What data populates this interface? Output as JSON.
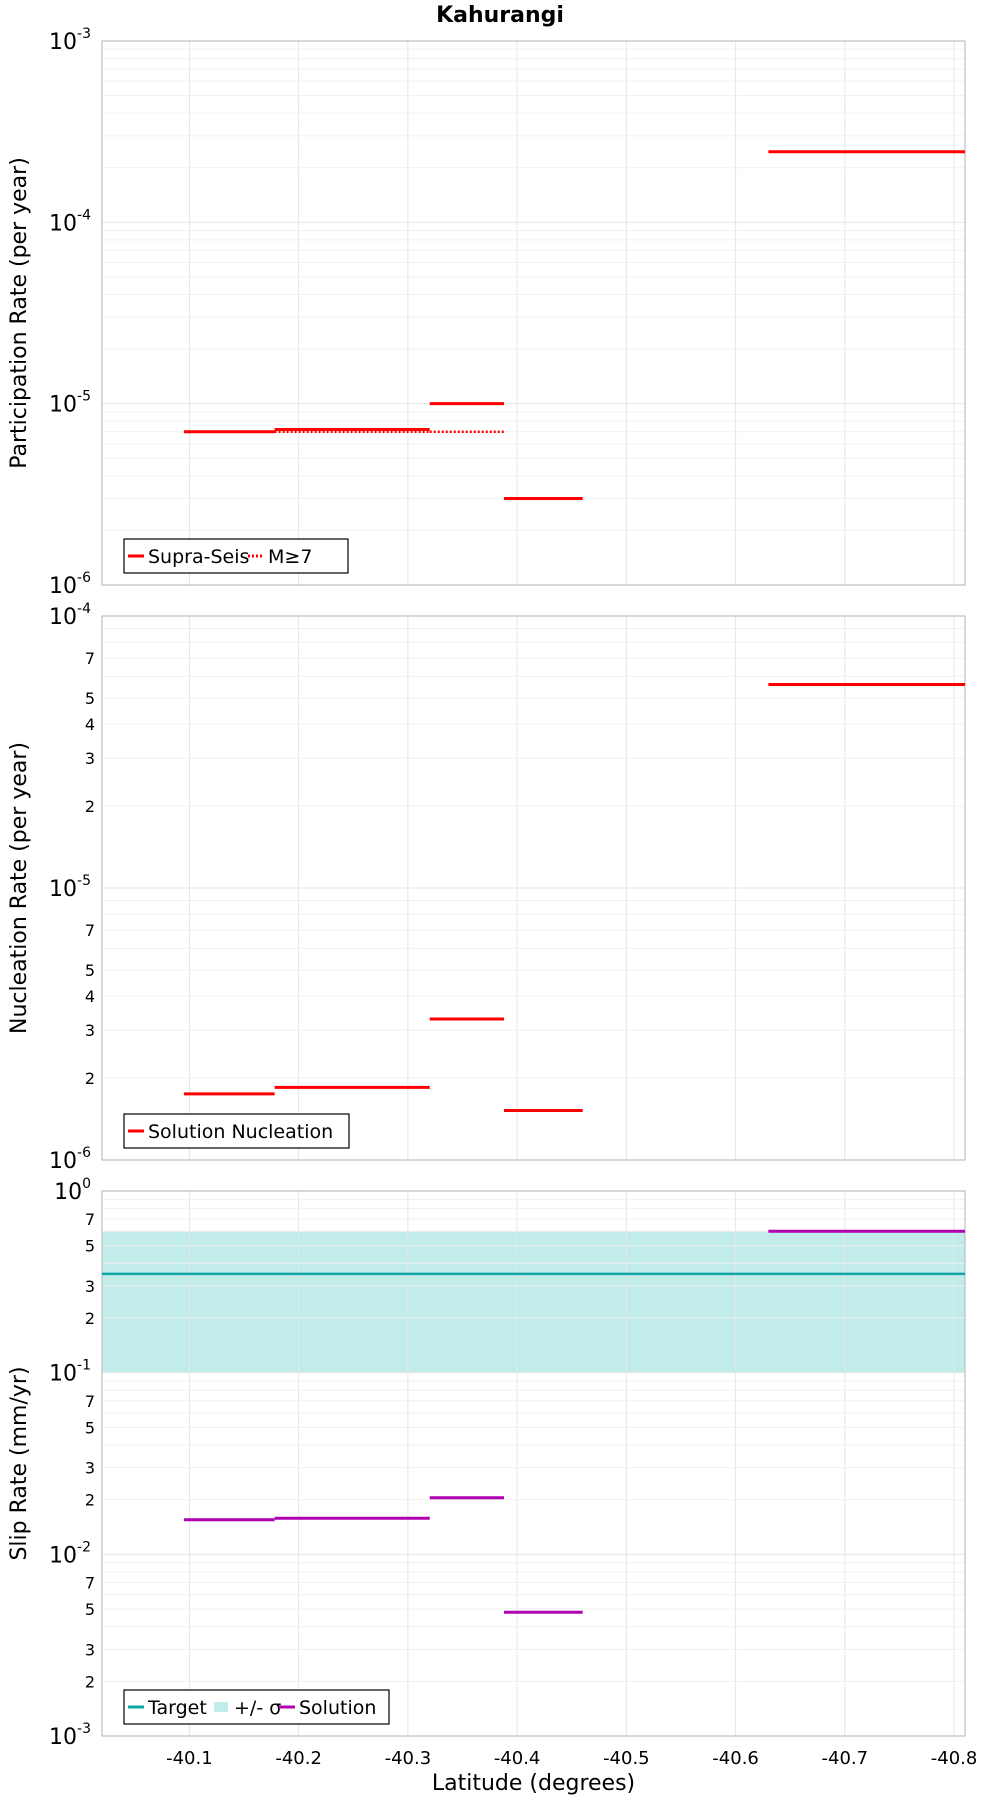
{
  "title": "Kahurangi",
  "colors": {
    "red": "#ff0000",
    "magenta": "#b000b0",
    "teal": "#12a8a8",
    "band": "#c2ecea",
    "grid": "#e6e6e6",
    "frame": "#bdbdbd"
  },
  "chart_data": [
    {
      "type": "line",
      "title": "Kahurangi",
      "ylabel": "Participation Rate (per year)",
      "xlabel": "",
      "xlim": [
        -40.02,
        -40.81
      ],
      "x_ticks": [
        "-40.1",
        "-40.2",
        "-40.3",
        "-40.4",
        "-40.5",
        "-40.6",
        "-40.7",
        "-40.8"
      ],
      "yscale": "log",
      "ylim": [
        1e-06,
        0.001
      ],
      "y_ticks": [
        {
          "base": "10",
          "exp": "-6"
        },
        {
          "base": "10",
          "exp": "-5"
        },
        {
          "base": "10",
          "exp": "-4"
        },
        {
          "base": "10",
          "exp": "-3"
        }
      ],
      "y_minor_labels": [],
      "grid": true,
      "legend_position": "bottom-left",
      "series": [
        {
          "name": "Supra-Seis",
          "style": "solid",
          "color": "#ff0000",
          "segments": [
            {
              "x": [
                -40.095,
                -40.178
              ],
              "y": 7e-06
            },
            {
              "x": [
                -40.178,
                -40.32
              ],
              "y": 7.2e-06
            },
            {
              "x": [
                -40.32,
                -40.388
              ],
              "y": 1e-05
            },
            {
              "x": [
                -40.388,
                -40.46
              ],
              "y": 3e-06
            },
            {
              "x": [
                -40.63,
                -40.81
              ],
              "y": 0.000245
            }
          ]
        },
        {
          "name": "M≥7",
          "style": "dotted",
          "color": "#ff0000",
          "segments": [
            {
              "x": [
                -40.095,
                -40.178
              ],
              "y": 7e-06
            },
            {
              "x": [
                -40.178,
                -40.32
              ],
              "y": 7e-06
            },
            {
              "x": [
                -40.32,
                -40.388
              ],
              "y": 7e-06
            }
          ]
        }
      ]
    },
    {
      "type": "line",
      "ylabel": "Nucleation Rate (per year)",
      "xlabel": "",
      "xlim": [
        -40.02,
        -40.81
      ],
      "x_ticks": [
        "-40.1",
        "-40.2",
        "-40.3",
        "-40.4",
        "-40.5",
        "-40.6",
        "-40.7",
        "-40.8"
      ],
      "yscale": "log",
      "ylim": [
        1e-06,
        0.0001
      ],
      "y_ticks": [
        {
          "base": "10",
          "exp": "-6"
        },
        {
          "base": "10",
          "exp": "-5"
        },
        {
          "base": "10",
          "exp": "-4"
        }
      ],
      "y_minor_labels": [
        "2",
        "3",
        "4",
        "5",
        "7"
      ],
      "grid": true,
      "legend_position": "bottom-left",
      "series": [
        {
          "name": "Solution Nucleation",
          "style": "solid",
          "color": "#ff0000",
          "segments": [
            {
              "x": [
                -40.095,
                -40.178
              ],
              "y": 1.75e-06
            },
            {
              "x": [
                -40.178,
                -40.32
              ],
              "y": 1.85e-06
            },
            {
              "x": [
                -40.32,
                -40.388
              ],
              "y": 3.3e-06
            },
            {
              "x": [
                -40.388,
                -40.46
              ],
              "y": 1.52e-06
            },
            {
              "x": [
                -40.63,
                -40.81
              ],
              "y": 5.6e-05
            }
          ]
        }
      ]
    },
    {
      "type": "line",
      "ylabel": "Slip Rate (mm/yr)",
      "xlabel": "Latitude (degrees)",
      "xlim": [
        -40.02,
        -40.81
      ],
      "x_ticks": [
        "-40.1",
        "-40.2",
        "-40.3",
        "-40.4",
        "-40.5",
        "-40.6",
        "-40.7",
        "-40.8"
      ],
      "yscale": "log",
      "ylim": [
        0.001,
        1
      ],
      "y_ticks": [
        {
          "base": "10",
          "exp": "-3"
        },
        {
          "base": "10",
          "exp": "-2"
        },
        {
          "base": "10",
          "exp": "-1"
        },
        {
          "base": "10",
          "exp": "0"
        }
      ],
      "y_minor_labels": [
        "2",
        "3",
        "5",
        "7"
      ],
      "grid": true,
      "legend_position": "bottom-left",
      "band": {
        "name": "+/- σ",
        "color": "#c2ecea",
        "y_low": 0.1,
        "y_high": 0.6
      },
      "series": [
        {
          "name": "Target",
          "style": "solid",
          "color": "#12a8a8",
          "segments": [
            {
              "x": [
                -40.02,
                -40.81
              ],
              "y": 0.35
            }
          ]
        },
        {
          "name": "Solution",
          "style": "solid",
          "color": "#b000b0",
          "segments": [
            {
              "x": [
                -40.095,
                -40.178
              ],
              "y": 0.0155
            },
            {
              "x": [
                -40.178,
                -40.32
              ],
              "y": 0.0158
            },
            {
              "x": [
                -40.32,
                -40.388
              ],
              "y": 0.0205
            },
            {
              "x": [
                -40.388,
                -40.46
              ],
              "y": 0.0048
            },
            {
              "x": [
                -40.63,
                -40.81
              ],
              "y": 0.6
            }
          ]
        }
      ],
      "legend": [
        "Target",
        "+/- σ",
        "Solution"
      ]
    }
  ]
}
